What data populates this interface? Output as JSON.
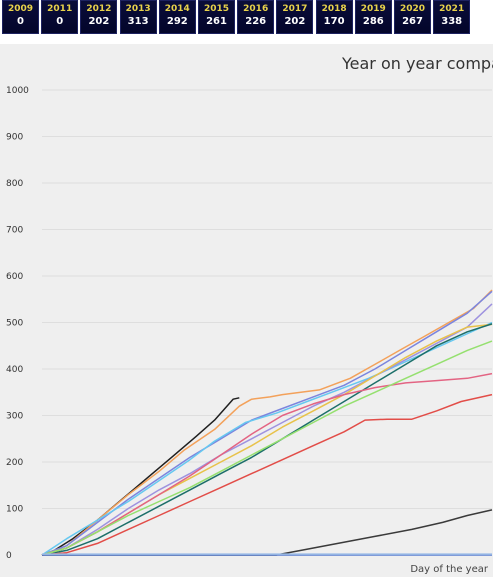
{
  "year_tiles": [
    {
      "year": "2009",
      "count": "0"
    },
    {
      "year": "2011",
      "count": "0"
    },
    {
      "year": "2012",
      "count": "202"
    },
    {
      "year": "2013",
      "count": "313"
    },
    {
      "year": "2014",
      "count": "292"
    },
    {
      "year": "2015",
      "count": "261"
    },
    {
      "year": "2016",
      "count": "226"
    },
    {
      "year": "2017",
      "count": "202"
    },
    {
      "year": "2018",
      "count": "170"
    },
    {
      "year": "2019",
      "count": "286"
    },
    {
      "year": "2020",
      "count": "267"
    },
    {
      "year": "2021",
      "count": "338"
    }
  ],
  "chart_data": {
    "type": "line",
    "title": "Year on year compar",
    "xlabel": "Day of the year",
    "ylabel": "",
    "xlim": [
      0,
      365
    ],
    "ylim": [
      0,
      1000
    ],
    "yticks": [
      0,
      100,
      200,
      300,
      400,
      500,
      600,
      700,
      800,
      900,
      1000
    ],
    "grid": true,
    "series": [
      {
        "color": "#1f1f1f",
        "points": [
          [
            0,
            0
          ],
          [
            10,
            10
          ],
          [
            25,
            35
          ],
          [
            45,
            75
          ],
          [
            65,
            120
          ],
          [
            85,
            165
          ],
          [
            105,
            210
          ],
          [
            125,
            255
          ],
          [
            140,
            290
          ],
          [
            150,
            320
          ],
          [
            155,
            335
          ],
          [
            160,
            338
          ]
        ]
      },
      {
        "color": "#f3a15a",
        "points": [
          [
            0,
            0
          ],
          [
            20,
            20
          ],
          [
            45,
            75
          ],
          [
            70,
            130
          ],
          [
            95,
            180
          ],
          [
            115,
            225
          ],
          [
            140,
            270
          ],
          [
            160,
            320
          ],
          [
            170,
            335
          ],
          [
            185,
            340
          ],
          [
            195,
            345
          ],
          [
            210,
            350
          ],
          [
            225,
            355
          ],
          [
            250,
            380
          ],
          [
            270,
            410
          ],
          [
            290,
            440
          ],
          [
            310,
            470
          ],
          [
            330,
            500
          ],
          [
            350,
            530
          ],
          [
            365,
            570
          ]
        ]
      },
      {
        "color": "#7b85de",
        "points": [
          [
            0,
            0
          ],
          [
            20,
            20
          ],
          [
            45,
            70
          ],
          [
            70,
            120
          ],
          [
            95,
            165
          ],
          [
            120,
            210
          ],
          [
            145,
            250
          ],
          [
            170,
            290
          ],
          [
            195,
            315
          ],
          [
            220,
            340
          ],
          [
            245,
            365
          ],
          [
            270,
            400
          ],
          [
            295,
            440
          ],
          [
            320,
            480
          ],
          [
            345,
            520
          ],
          [
            365,
            567
          ]
        ]
      },
      {
        "color": "#66c8f0",
        "points": [
          [
            0,
            0
          ],
          [
            20,
            35
          ],
          [
            45,
            75
          ],
          [
            70,
            115
          ],
          [
            95,
            160
          ],
          [
            120,
            205
          ],
          [
            140,
            245
          ],
          [
            165,
            285
          ],
          [
            190,
            305
          ],
          [
            215,
            330
          ],
          [
            240,
            355
          ],
          [
            265,
            380
          ],
          [
            290,
            410
          ],
          [
            315,
            440
          ],
          [
            340,
            470
          ],
          [
            365,
            500
          ]
        ]
      },
      {
        "color": "#9e92df",
        "points": [
          [
            0,
            0
          ],
          [
            20,
            15
          ],
          [
            45,
            55
          ],
          [
            70,
            100
          ],
          [
            95,
            140
          ],
          [
            120,
            175
          ],
          [
            145,
            215
          ],
          [
            170,
            250
          ],
          [
            195,
            285
          ],
          [
            220,
            320
          ],
          [
            245,
            350
          ],
          [
            270,
            385
          ],
          [
            295,
            420
          ],
          [
            320,
            455
          ],
          [
            345,
            490
          ],
          [
            365,
            540
          ]
        ]
      },
      {
        "color": "#e8c24a",
        "points": [
          [
            0,
            0
          ],
          [
            20,
            15
          ],
          [
            45,
            50
          ],
          [
            70,
            90
          ],
          [
            95,
            130
          ],
          [
            120,
            165
          ],
          [
            145,
            200
          ],
          [
            170,
            235
          ],
          [
            195,
            275
          ],
          [
            220,
            310
          ],
          [
            245,
            345
          ],
          [
            270,
            385
          ],
          [
            295,
            425
          ],
          [
            320,
            460
          ],
          [
            345,
            490
          ],
          [
            365,
            496
          ]
        ]
      },
      {
        "color": "#1d6f6a",
        "points": [
          [
            0,
            0
          ],
          [
            20,
            10
          ],
          [
            45,
            35
          ],
          [
            70,
            70
          ],
          [
            95,
            105
          ],
          [
            120,
            140
          ],
          [
            145,
            175
          ],
          [
            170,
            210
          ],
          [
            195,
            250
          ],
          [
            220,
            290
          ],
          [
            245,
            330
          ],
          [
            270,
            370
          ],
          [
            295,
            410
          ],
          [
            320,
            450
          ],
          [
            345,
            480
          ],
          [
            365,
            497
          ]
        ]
      },
      {
        "color": "#e36483",
        "points": [
          [
            0,
            0
          ],
          [
            20,
            15
          ],
          [
            45,
            50
          ],
          [
            70,
            90
          ],
          [
            95,
            130
          ],
          [
            120,
            170
          ],
          [
            145,
            215
          ],
          [
            170,
            260
          ],
          [
            195,
            300
          ],
          [
            220,
            325
          ],
          [
            245,
            345
          ],
          [
            270,
            360
          ],
          [
            295,
            370
          ],
          [
            320,
            375
          ],
          [
            345,
            380
          ],
          [
            365,
            390
          ]
        ]
      },
      {
        "color": "#95e06f",
        "points": [
          [
            0,
            0
          ],
          [
            20,
            15
          ],
          [
            45,
            50
          ],
          [
            70,
            85
          ],
          [
            95,
            115
          ],
          [
            120,
            145
          ],
          [
            145,
            180
          ],
          [
            170,
            215
          ],
          [
            195,
            250
          ],
          [
            220,
            285
          ],
          [
            245,
            320
          ],
          [
            270,
            350
          ],
          [
            295,
            380
          ],
          [
            320,
            410
          ],
          [
            345,
            440
          ],
          [
            365,
            460
          ]
        ]
      },
      {
        "color": "#e24d48",
        "points": [
          [
            0,
            0
          ],
          [
            20,
            5
          ],
          [
            45,
            25
          ],
          [
            70,
            55
          ],
          [
            95,
            85
          ],
          [
            120,
            115
          ],
          [
            145,
            145
          ],
          [
            170,
            175
          ],
          [
            195,
            205
          ],
          [
            220,
            235
          ],
          [
            245,
            265
          ],
          [
            262,
            290
          ],
          [
            280,
            292
          ],
          [
            300,
            292
          ],
          [
            320,
            310
          ],
          [
            340,
            330
          ],
          [
            365,
            345
          ]
        ]
      },
      {
        "color": "#3a3a3a",
        "points": [
          [
            0,
            0
          ],
          [
            190,
            0
          ],
          [
            210,
            10
          ],
          [
            240,
            25
          ],
          [
            270,
            40
          ],
          [
            300,
            55
          ],
          [
            325,
            70
          ],
          [
            345,
            85
          ],
          [
            365,
            97
          ]
        ]
      },
      {
        "color": "#5b7fd0",
        "points": [
          [
            0,
            0
          ],
          [
            365,
            0
          ]
        ]
      },
      {
        "color": "#9bbbe6",
        "points": [
          [
            0,
            2
          ],
          [
            365,
            2
          ]
        ]
      }
    ]
  }
}
